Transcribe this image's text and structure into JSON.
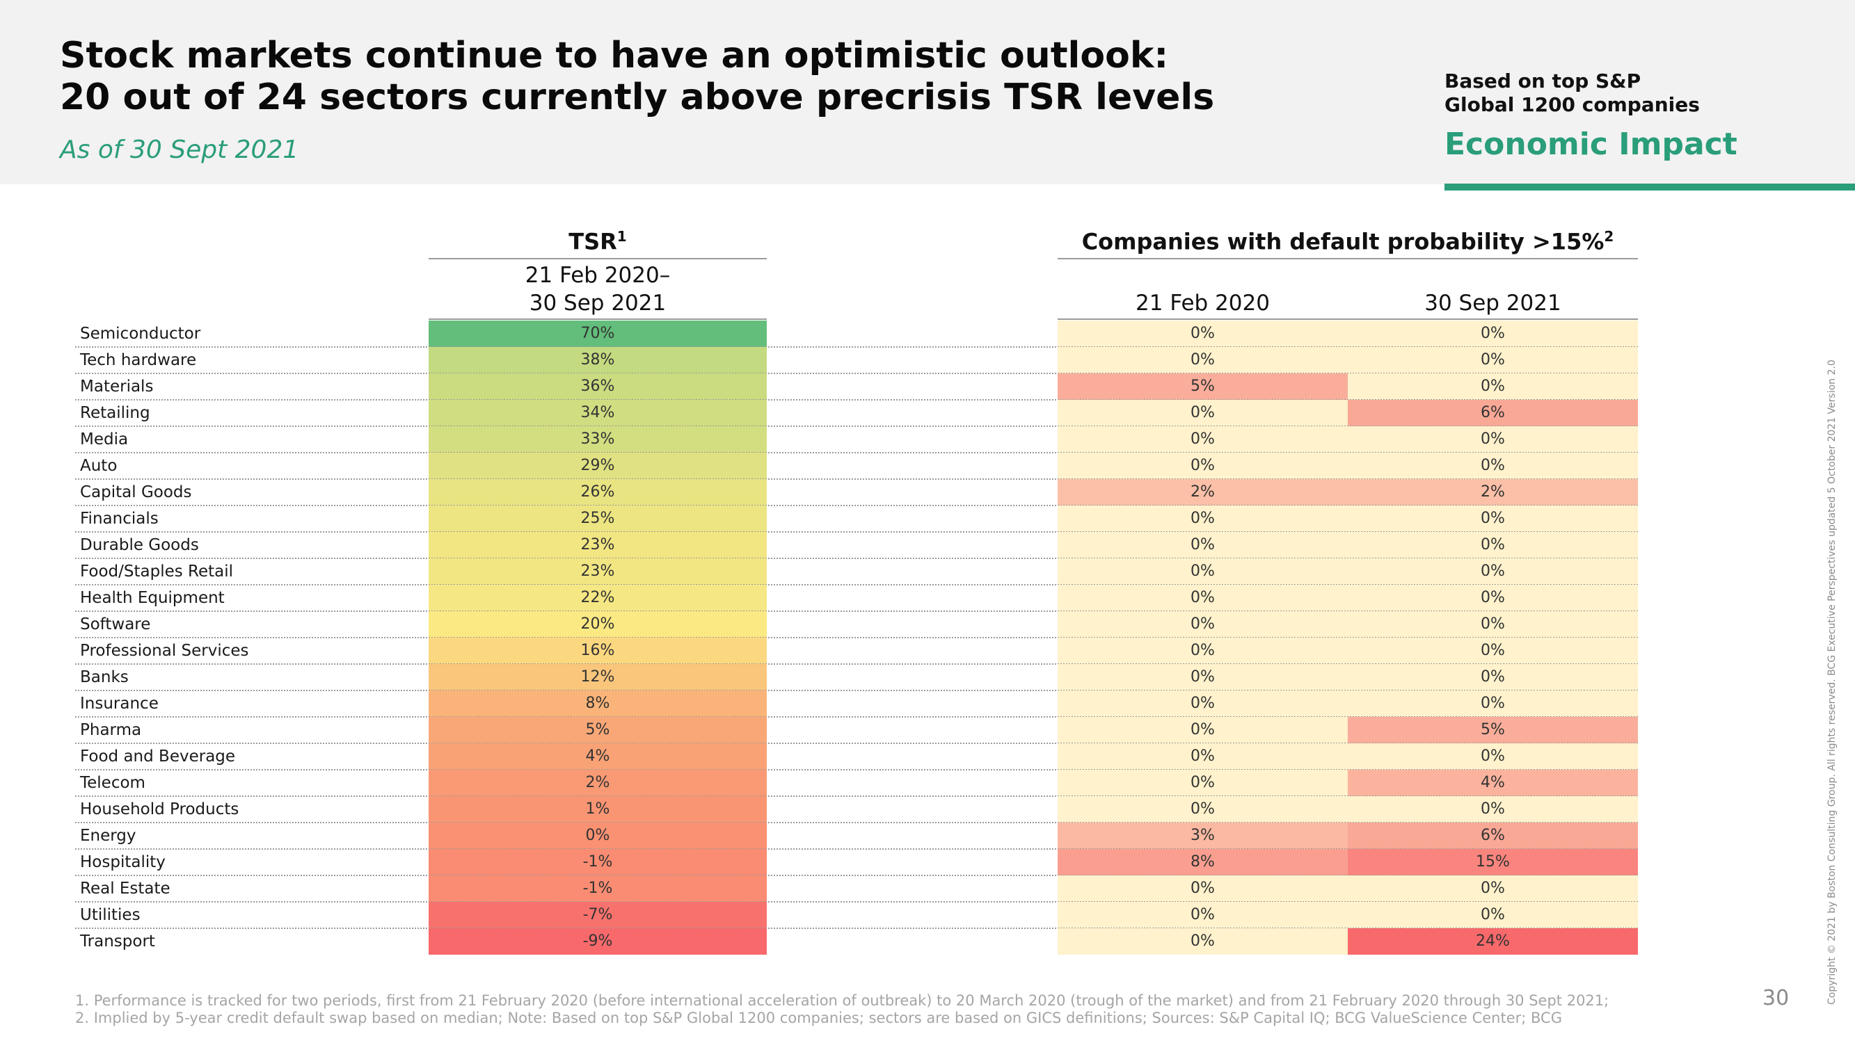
{
  "header": {
    "title_line1": "Stock markets continue to have an optimistic outlook:",
    "title_line2": "20 out of 24 sectors currently above precrisis TSR levels",
    "subtitle": "As of 30 Sept 2021",
    "basis_line1": "Based on top S&P",
    "basis_line2": "Global 1200 companies",
    "section_label": "Economic Impact",
    "accent_color": "#2a9d7a"
  },
  "chart_data": {
    "type": "table",
    "tsr_header": "TSR",
    "tsr_header_sup": "1",
    "tsr_period_line1": "21 Feb 2020–",
    "tsr_period_line2": "30 Sep 2021",
    "default_header": "Companies with default probability >15%",
    "default_header_sup": "2",
    "default_col1": "21 Feb 2020",
    "default_col2": "30 Sep 2021",
    "rows": [
      {
        "sector": "Semiconductor",
        "tsr": "70%",
        "feb2020": "0%",
        "sep2021": "0%"
      },
      {
        "sector": "Tech hardware",
        "tsr": "38%",
        "feb2020": "0%",
        "sep2021": "0%"
      },
      {
        "sector": "Materials",
        "tsr": "36%",
        "feb2020": "5%",
        "sep2021": "0%"
      },
      {
        "sector": "Retailing",
        "tsr": "34%",
        "feb2020": "0%",
        "sep2021": "6%"
      },
      {
        "sector": "Media",
        "tsr": "33%",
        "feb2020": "0%",
        "sep2021": "0%"
      },
      {
        "sector": "Auto",
        "tsr": "29%",
        "feb2020": "0%",
        "sep2021": "0%"
      },
      {
        "sector": "Capital Goods",
        "tsr": "26%",
        "feb2020": "2%",
        "sep2021": "2%"
      },
      {
        "sector": "Financials",
        "tsr": "25%",
        "feb2020": "0%",
        "sep2021": "0%"
      },
      {
        "sector": "Durable Goods",
        "tsr": "23%",
        "feb2020": "0%",
        "sep2021": "0%"
      },
      {
        "sector": "Food/Staples Retail",
        "tsr": "23%",
        "feb2020": "0%",
        "sep2021": "0%"
      },
      {
        "sector": "Health Equipment",
        "tsr": "22%",
        "feb2020": "0%",
        "sep2021": "0%"
      },
      {
        "sector": "Software",
        "tsr": "20%",
        "feb2020": "0%",
        "sep2021": "0%"
      },
      {
        "sector": "Professional Services",
        "tsr": "16%",
        "feb2020": "0%",
        "sep2021": "0%"
      },
      {
        "sector": "Banks",
        "tsr": "12%",
        "feb2020": "0%",
        "sep2021": "0%"
      },
      {
        "sector": "Insurance",
        "tsr": "8%",
        "feb2020": "0%",
        "sep2021": "0%"
      },
      {
        "sector": "Pharma",
        "tsr": "5%",
        "feb2020": "0%",
        "sep2021": "5%"
      },
      {
        "sector": "Food and Beverage",
        "tsr": "4%",
        "feb2020": "0%",
        "sep2021": "0%"
      },
      {
        "sector": "Telecom",
        "tsr": "2%",
        "feb2020": "0%",
        "sep2021": "4%"
      },
      {
        "sector": "Household Products",
        "tsr": "1%",
        "feb2020": "0%",
        "sep2021": "0%"
      },
      {
        "sector": "Energy",
        "tsr": "0%",
        "feb2020": "3%",
        "sep2021": "6%"
      },
      {
        "sector": "Hospitality",
        "tsr": "-1%",
        "feb2020": "8%",
        "sep2021": "15%"
      },
      {
        "sector": "Real Estate",
        "tsr": "-1%",
        "feb2020": "0%",
        "sep2021": "0%"
      },
      {
        "sector": "Utilities",
        "tsr": "-7%",
        "feb2020": "0%",
        "sep2021": "0%"
      },
      {
        "sector": "Transport",
        "tsr": "-9%",
        "feb2020": "0%",
        "sep2021": "24%"
      }
    ],
    "color_scale": {
      "high": "#63be7b",
      "mid": "#fbe983",
      "low": "#f8696b",
      "zero_default": "#fff2cc"
    }
  },
  "footnotes": {
    "f1": "1. Performance is tracked for two periods, first from 21 February 2020 (before international acceleration of outbreak) to 20 March 2020 (trough of the market) and from 21 February 2020 through 30 Sept 2021;",
    "f2": "2. Implied by 5-year credit default swap based on median; Note: Based on top S&P Global 1200 companies; sectors are based on GICS definitions; Sources: S&P Capital IQ; BCG ValueScience Center; BCG"
  },
  "page_number": "30",
  "copyright": "Copyright © 2021 by Boston Consulting Group. All rights reserved. BCG Executive Perspectives updated 5 October 2021 Version 2.0"
}
